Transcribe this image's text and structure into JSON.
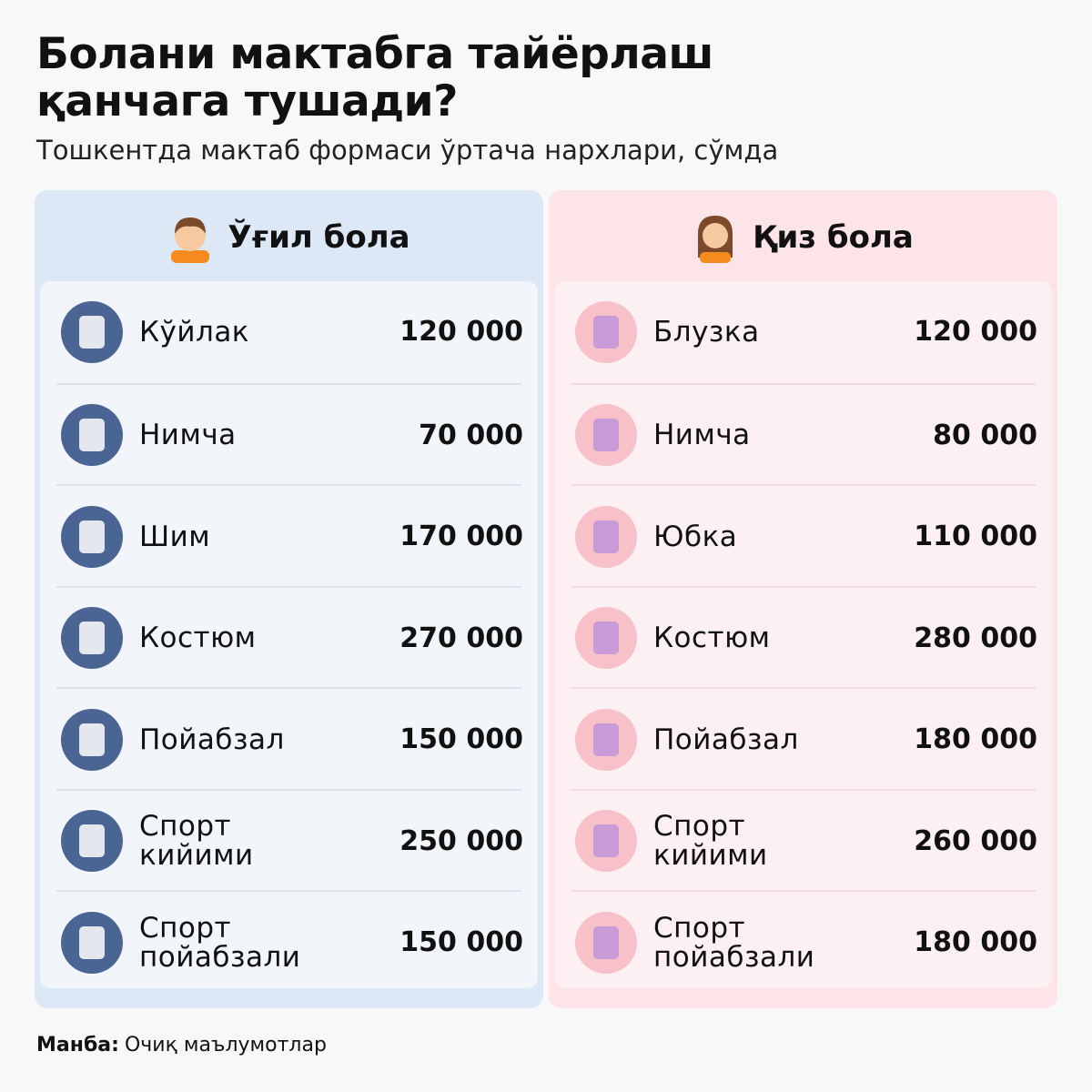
{
  "header": {
    "title_lines": [
      "Болани мактабга тайёрлаш",
      "қанчага тушади?"
    ],
    "subtitle": "Тошкентда мактаб формаси ўртача нархлари, сўмда"
  },
  "panels": [
    {
      "title": "Ўғил бола",
      "items": [
        {
          "label": "Кўйлак",
          "price": "120 000"
        },
        {
          "label": "Нимча",
          "price": "70 000"
        },
        {
          "label": "Шим",
          "price": "170 000"
        },
        {
          "label": "Костюм",
          "price": "270 000"
        },
        {
          "label": "Пойабзал",
          "price": "150 000"
        },
        {
          "label": "Спорт кийими",
          "price": "250 000"
        },
        {
          "label": "Спорт пойабзали",
          "price": "150 000"
        }
      ]
    },
    {
      "title": "Қиз бола",
      "items": [
        {
          "label": "Блузка",
          "price": "120 000"
        },
        {
          "label": "Нимча",
          "price": "80 000"
        },
        {
          "label": "Юбка",
          "price": "110 000"
        },
        {
          "label": "Костюм",
          "price": "280 000"
        },
        {
          "label": "Пойабзал",
          "price": "180 000"
        },
        {
          "label": "Спорт кийими",
          "price": "260 000"
        },
        {
          "label": "Спорт пойабзали",
          "price": "180 000"
        }
      ]
    }
  ],
  "footer": {
    "source_label": "Манба:",
    "source": "Очиқ маълумотлар"
  }
}
